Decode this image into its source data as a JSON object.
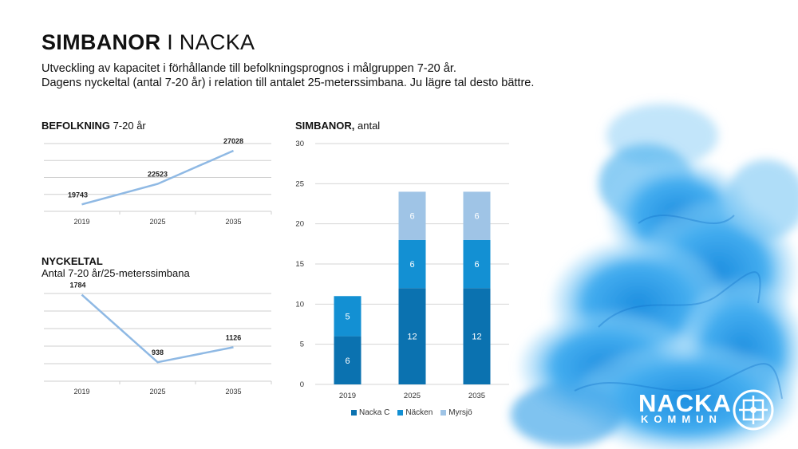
{
  "header": {
    "title_bold": "SIMBANOR",
    "title_rest": " I NACKA",
    "line1": "Utveckling av kapacitet i förhållande till befolkningsprognos i målgruppen 7-20 år.",
    "line2": "Dagens nyckeltal (antal 7-20 år) i relation till antalet 25-meterssimbana. Ju lägre tal desto bättre."
  },
  "chart_titles": {
    "pop_bold": "BEFOLKNING",
    "pop_rest": " 7-20 år",
    "key_bold": "NYCKELTAL",
    "key_rest": "Antal 7-20 år/25-meterssimbana",
    "pools_bold": "SIMBANOR,",
    "pools_rest": " antal"
  },
  "logo": {
    "line1": "NACKA",
    "line2": "KOMMUN"
  },
  "colors": {
    "line": "#8fb9e4",
    "nacka_c": "#0b72b0",
    "nacken": "#1390d3",
    "myrsjo": "#9fc4e6"
  },
  "chart_data": [
    {
      "type": "line",
      "title": "BEFOLKNING 7-20 år",
      "categories": [
        "2019",
        "2025",
        "2035"
      ],
      "values": [
        19743,
        22523,
        27028
      ],
      "labels": [
        "19743",
        "22523",
        "27028"
      ]
    },
    {
      "type": "line",
      "title": "NYCKELTAL Antal 7-20 år/25-meterssimbana",
      "categories": [
        "2019",
        "2025",
        "2035"
      ],
      "values": [
        1784,
        938,
        1126
      ],
      "labels": [
        "1784",
        "938",
        "1126"
      ]
    },
    {
      "type": "bar",
      "stacked": true,
      "title": "SIMBANOR, antal",
      "categories": [
        "2019",
        "2025",
        "2035"
      ],
      "ylim": [
        0,
        30
      ],
      "yticks": [
        "0",
        "5",
        "10",
        "15",
        "20",
        "25",
        "30"
      ],
      "series": [
        {
          "name": "Nacka C",
          "values": [
            6,
            12,
            12
          ]
        },
        {
          "name": "Näcken",
          "values": [
            5,
            6,
            6
          ]
        },
        {
          "name": "Myrsjö",
          "values": [
            0,
            6,
            6
          ]
        }
      ],
      "legend": "bottom"
    }
  ]
}
